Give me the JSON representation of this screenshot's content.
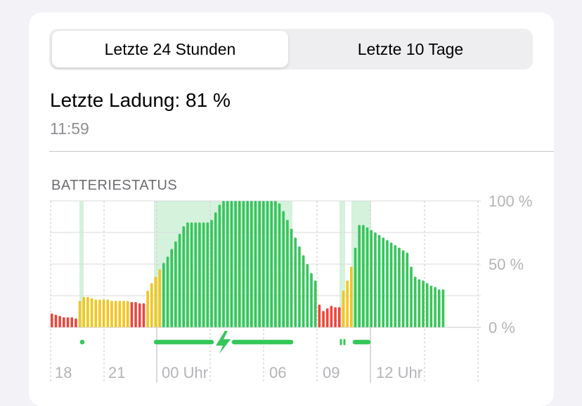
{
  "tabs": [
    {
      "label": "Letzte 24 Stunden",
      "active": true
    },
    {
      "label": "Letzte 10 Tage",
      "active": false
    }
  ],
  "last_charge": {
    "text": "Letzte Ladung: 81 %",
    "time": "11:59"
  },
  "section_title": "BATTERIESTATUS",
  "colors": {
    "red": "#f0453a",
    "yellow": "#f5c518",
    "green": "#35c759",
    "charging_bg": "#d5f2dc",
    "charge_line": "#35c759"
  },
  "icons": {
    "charging": "lightning-bolt-icon"
  },
  "chart_data": {
    "type": "bar",
    "ylim": [
      0,
      100
    ],
    "y_ticks": [
      "100 %",
      "50 %",
      "0 %"
    ],
    "x_ticks": [
      "18",
      "21",
      "00 Uhr",
      "06",
      "09",
      "12 Uhr"
    ],
    "values": [
      11,
      10,
      9,
      8,
      8,
      8,
      7,
      21,
      24,
      24,
      23,
      22,
      22,
      22,
      22,
      21,
      21,
      21,
      21,
      21,
      20,
      20,
      19,
      19,
      29,
      35,
      40,
      46,
      51,
      56,
      62,
      68,
      74,
      80,
      83,
      83,
      83,
      83,
      83,
      83,
      85,
      91,
      97,
      100,
      100,
      100,
      100,
      100,
      100,
      100,
      100,
      100,
      100,
      100,
      100,
      100,
      100,
      98,
      92,
      85,
      78,
      71,
      64,
      57,
      50,
      43,
      37,
      18,
      13,
      15,
      17,
      16,
      16,
      29,
      37,
      48,
      63,
      81,
      81,
      79,
      77,
      75,
      73,
      71,
      69,
      67,
      65,
      63,
      61,
      59,
      48,
      40,
      38,
      37,
      35,
      33,
      32,
      30,
      30
    ],
    "charging_periods": [
      "~19:00",
      "23:45–07:30",
      "09:30",
      "10:20–11:59"
    ]
  }
}
